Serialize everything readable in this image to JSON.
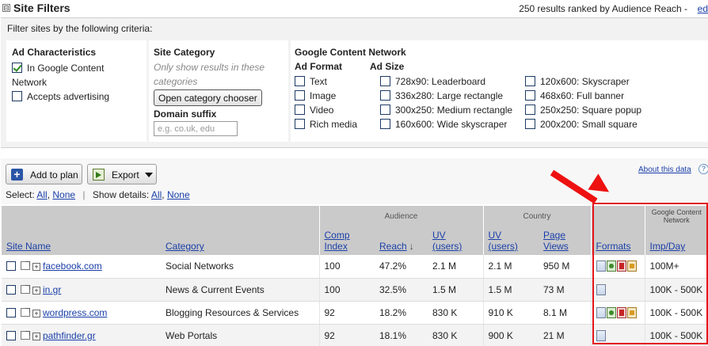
{
  "filters": {
    "title": "Site Filters",
    "collapse_glyph": "⊟",
    "results_summary": "250 results ranked by Audience Reach -",
    "edit_link": "ed",
    "intro": "Filter sites by the following criteria:",
    "ad_characteristics": {
      "title": "Ad Characteristics",
      "options": [
        {
          "label": "In Google Content",
          "label_cont": "Network",
          "checked": true
        },
        {
          "label": "Accepts advertising",
          "checked": false
        }
      ]
    },
    "site_category": {
      "title": "Site Category",
      "hint_line1": "Only show results in these",
      "hint_line2": "categories",
      "chooser_button": "Open category chooser",
      "domain_title": "Domain suffix",
      "domain_placeholder": "e.g. co.uk, edu"
    },
    "content_network": {
      "title": "Google Content Network",
      "ad_format_title": "Ad Format",
      "ad_formats": [
        "Text",
        "Image",
        "Video",
        "Rich media"
      ],
      "ad_size_title": "Ad Size",
      "ad_sizes_col1": [
        "728x90: Leaderboard",
        "336x280: Large rectangle",
        "300x250: Medium rectangle",
        "160x600: Wide skyscraper"
      ],
      "ad_sizes_col2": [
        "120x600: Skyscraper",
        "468x60: Full banner",
        "250x250: Square popup",
        "200x200: Small square"
      ]
    }
  },
  "toolbar": {
    "add_plan": "Add to plan",
    "export": "Export",
    "about": "About this data",
    "help_glyph": "?",
    "select_label": "Select:",
    "select_all": "All",
    "select_none": "None",
    "show_details_label": "Show details:",
    "details_all": "All",
    "details_none": "None"
  },
  "table": {
    "groups": {
      "audience": "Audience",
      "country": "Country",
      "gcn": "Google Content",
      "gcn2": "Network"
    },
    "columns": {
      "site": "Site Name",
      "category": "Category",
      "comp1": "Comp",
      "comp2": "Index",
      "reach": "Reach",
      "reach_arrow": "↓",
      "uv1": "UV",
      "uv2": "(users)",
      "cuv1": "UV",
      "cuv2": "(users)",
      "pv1": "Page",
      "pv2": "Views",
      "formats": "Formats",
      "imp": "Imp/Day"
    },
    "rows": [
      {
        "site": "facebook.com",
        "category": "Social Networks",
        "comp_index": "100",
        "reach": "47.2%",
        "uv": "2.1 M",
        "country_uv": "2.1 M",
        "page_views": "950 M",
        "formats": [
          "text-format-icon",
          "image-format-icon",
          "video-format-icon",
          "rich-media-format-icon"
        ],
        "imp_day": "100M+"
      },
      {
        "site": "in.gr",
        "category": "News & Current Events",
        "comp_index": "100",
        "reach": "32.5%",
        "uv": "1.5 M",
        "country_uv": "1.5 M",
        "page_views": "73 M",
        "formats": [
          "text-format-icon"
        ],
        "imp_day": "100K - 500K"
      },
      {
        "site": "wordpress.com",
        "category": "Blogging Resources & Services",
        "comp_index": "92",
        "reach": "18.2%",
        "uv": "830 K",
        "country_uv": "910 K",
        "page_views": "8.1 M",
        "formats": [
          "text-format-icon",
          "image-format-icon",
          "video-format-icon",
          "rich-media-format-icon"
        ],
        "imp_day": "100K - 500K"
      },
      {
        "site": "pathfinder.gr",
        "category": "Web Portals",
        "comp_index": "92",
        "reach": "18.1%",
        "uv": "830 K",
        "country_uv": "900 K",
        "page_views": "21 M",
        "formats": [
          "text-format-icon"
        ],
        "imp_day": "100K - 500K"
      }
    ]
  },
  "annotation": {
    "highlight_color": "#e3161c",
    "arrow_color": "#ee1111"
  }
}
